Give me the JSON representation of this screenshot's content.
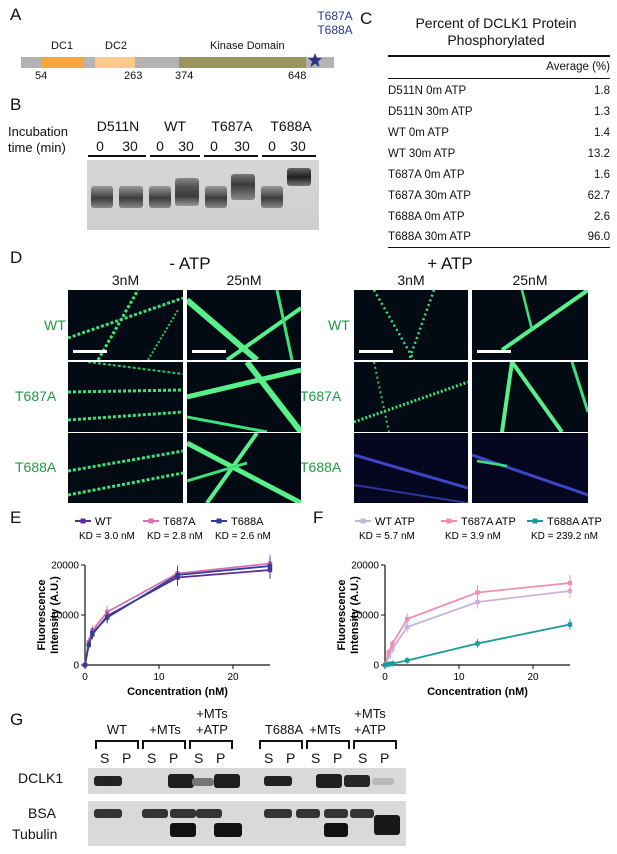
{
  "panelA": {
    "label": "A",
    "domains": [
      "DC1",
      "DC2",
      "Kinase Domain"
    ],
    "positions": [
      "54",
      "263",
      "374",
      "648"
    ],
    "mutants": [
      "T687A",
      "T688A"
    ]
  },
  "panelB": {
    "label": "B",
    "incubation": [
      "Incubation",
      "time (min)"
    ],
    "groups": [
      "D511N",
      "WT",
      "T687A",
      "T688A"
    ],
    "times": [
      "0",
      "30",
      "0",
      "30",
      "0",
      "30",
      "0",
      "30"
    ]
  },
  "panelC": {
    "label": "C",
    "title": [
      "Percent of DCLK1 Protein",
      "Phosphorylated"
    ],
    "header": "Average (%)",
    "rows": [
      {
        "name": "D511N 0m ATP",
        "value": "1.8"
      },
      {
        "name": "D511N 30m ATP",
        "value": "1.3"
      },
      {
        "name": "WT 0m ATP",
        "value": "1.4"
      },
      {
        "name": "WT 30m ATP",
        "value": "13.2"
      },
      {
        "name": "T687A 0m ATP",
        "value": "1.6"
      },
      {
        "name": "T687A 30m ATP",
        "value": "62.7"
      },
      {
        "name": "T688A 0m ATP",
        "value": "2.6"
      },
      {
        "name": "T688A 30m ATP",
        "value": "96.0"
      }
    ]
  },
  "panelD": {
    "label": "D",
    "minusATP": "- ATP",
    "plusATP": "+ ATP",
    "conc": [
      "3nM",
      "25nM",
      "3nM",
      "25nM"
    ],
    "rows": [
      "WT",
      "T687A",
      "T688A",
      "WT",
      "T687A",
      "T688A"
    ]
  },
  "panelE": {
    "label": "E",
    "chart_data": {
      "type": "line",
      "xlabel": "Concentration (nM)",
      "ylabel": "Fluorescence Intensity (A.U.)",
      "xlim": [
        0,
        25
      ],
      "ylim": [
        0,
        20000
      ],
      "xticks": [
        "0",
        "10",
        "20"
      ],
      "yticks": [
        "0",
        "10000",
        "20000"
      ],
      "x": [
        0,
        0.5,
        1,
        3,
        12.5,
        25
      ],
      "series": [
        {
          "name": "WT",
          "kd": "KD = 3.0 nM",
          "color": "#5e2d91",
          "values": [
            0,
            4200,
            6100,
            9800,
            17500,
            19000
          ]
        },
        {
          "name": "T687A",
          "kd": "KD = 2.8 nM",
          "color": "#d56fb7",
          "values": [
            0,
            4600,
            6900,
            10600,
            18300,
            20300
          ]
        },
        {
          "name": "T688A",
          "kd": "KD = 2.6 nM",
          "color": "#333f97",
          "values": [
            0,
            4000,
            6400,
            9500,
            18000,
            19800
          ]
        }
      ]
    }
  },
  "panelF": {
    "label": "F",
    "chart_data": {
      "type": "line",
      "xlabel": "Concentration (nM)",
      "ylabel": "Fluorescence Intensity (A.U.)",
      "xlim": [
        0,
        25
      ],
      "ylim": [
        0,
        20000
      ],
      "xticks": [
        "0",
        "10",
        "20"
      ],
      "yticks": [
        "0",
        "10000",
        "20000"
      ],
      "x": [
        0,
        0.5,
        1,
        3,
        12.5,
        25
      ],
      "series": [
        {
          "name": "WT ATP",
          "kd": "KD = 5.7 nM",
          "color": "#c9b3dc",
          "values": [
            0,
            1800,
            3200,
            7600,
            12600,
            14800
          ]
        },
        {
          "name": "T687A ATP",
          "kd": "KD = 3.9 nM",
          "color": "#f08fb3",
          "values": [
            0,
            2500,
            4200,
            9200,
            14500,
            16400
          ]
        },
        {
          "name": "T688A ATP",
          "kd": "KD = 239.2 nM",
          "color": "#1a9a9a",
          "values": [
            0,
            150,
            300,
            900,
            4300,
            8100
          ]
        }
      ]
    }
  },
  "panelG": {
    "label": "G",
    "groups": [
      "WT",
      "+MTs",
      "+MTs",
      "+ATP",
      "T688A",
      "+MTs",
      "+MTs",
      "+ATP"
    ],
    "lanes": [
      "S",
      "P",
      "S",
      "P",
      "S",
      "P",
      "S",
      "P",
      "S",
      "P",
      "S",
      "P"
    ],
    "rows": [
      "DCLK1",
      "BSA",
      "Tubulin"
    ]
  }
}
